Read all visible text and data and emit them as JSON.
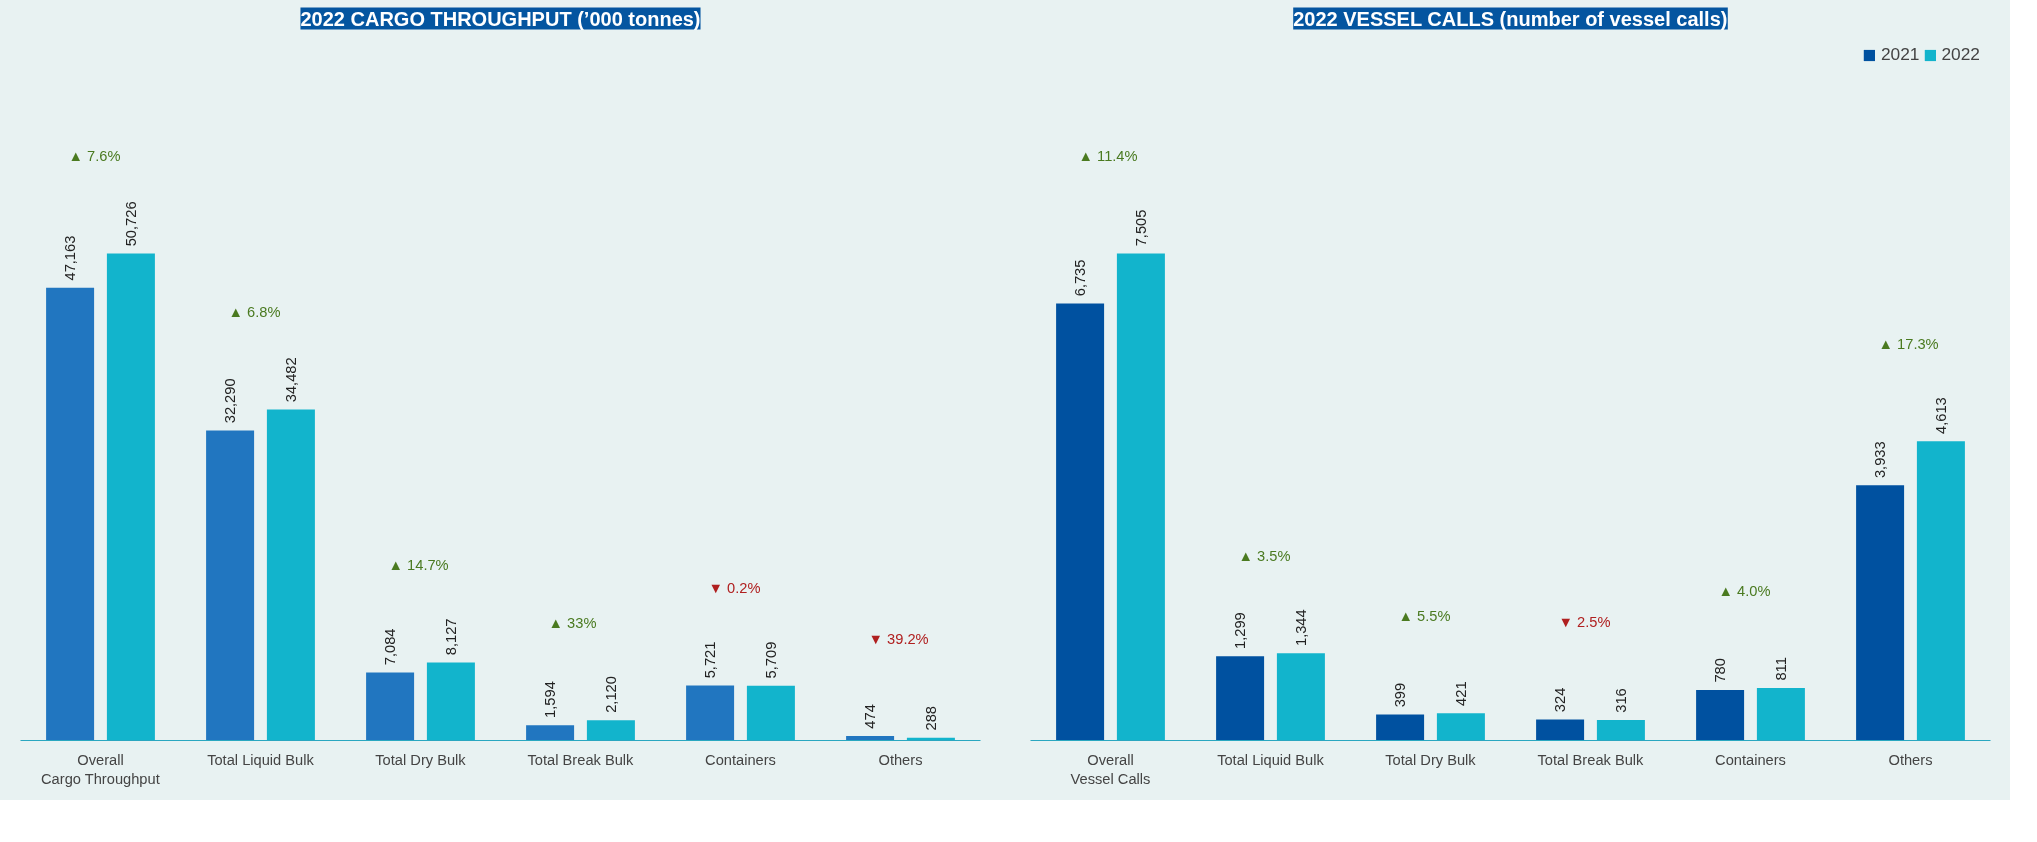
{
  "chart_data": [
    {
      "type": "bar",
      "title": "2022 CARGO THROUGHPUT (’000 tonnes)",
      "categories": [
        "Overall\nCargo Throughput",
        "Total Liquid Bulk",
        "Total Dry Bulk",
        "Total Break Bulk",
        "Containers",
        "Others"
      ],
      "series": [
        {
          "color": "#2176c0",
          "values": [
            47163,
            32290,
            7084,
            1594,
            5721,
            474
          ],
          "value_labels": [
            "47,163",
            "32,290",
            "7,084",
            "1,594",
            "5,721",
            "474"
          ]
        },
        {
          "color": "#12b4cc",
          "values": [
            50726,
            34482,
            8127,
            2120,
            5709,
            288
          ],
          "value_labels": [
            "50,726",
            "34,482",
            "8,127",
            "2,120",
            "5,709",
            "288"
          ]
        }
      ],
      "legend": false,
      "grid": false,
      "annotations": [
        "▲ 7.6%",
        "▲ 6.8%",
        "▲ 14.7%",
        "▲ 33%",
        "▼ 0.2%",
        "▼ 39.2%"
      ]
    },
    {
      "type": "bar",
      "title": "2022 VESSEL CALLS (number of vessel calls)",
      "categories": [
        "Overall\nVessel Calls",
        "Total Liquid Bulk",
        "Total Dry Bulk",
        "Total Break Bulk",
        "Containers",
        "Others"
      ],
      "series": [
        {
          "name": "2021",
          "color": "#0051a0",
          "values": [
            6735,
            1299,
            399,
            324,
            780,
            3933
          ],
          "value_labels": [
            "6,735",
            "1,299",
            "399",
            "324",
            "780",
            "3,933"
          ]
        },
        {
          "name": "2022",
          "color": "#12b4cc",
          "values": [
            7505,
            1344,
            421,
            316,
            811,
            4613
          ],
          "value_labels": [
            "7,505",
            "1,344",
            "421",
            "316",
            "811",
            "4,613"
          ]
        }
      ],
      "legend": "top right",
      "grid": false,
      "annotations": [
        "▲ 11.4%",
        "▲ 3.5%",
        "▲ 5.5%",
        "▼ 2.5%",
        "▲ 4.0%",
        "▲ 17.3%"
      ]
    }
  ]
}
